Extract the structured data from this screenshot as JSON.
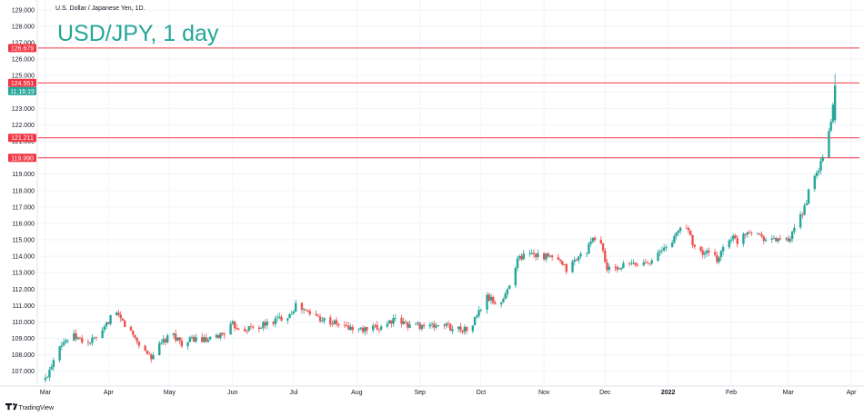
{
  "header": {
    "symbol_line": "U.S. Dollar / Japanese Yen, 1D.",
    "title": "USD/JPY, 1 day"
  },
  "footer": {
    "brand": "TradingView"
  },
  "colors": {
    "up": "#26a69a",
    "down": "#ef5350",
    "level_line": "#f23645",
    "title": "#26a69a",
    "grid": "#f0f3fa"
  },
  "chart_data": {
    "type": "candlestick",
    "title": "USD/JPY, 1 day",
    "ylim": [
      106.1,
      129.6
    ],
    "y_ticks": [
      "107.000",
      "108.000",
      "109.000",
      "110.000",
      "111.000",
      "112.000",
      "113.000",
      "114.000",
      "115.000",
      "116.000",
      "117.000",
      "118.000",
      "119.000",
      "120.000",
      "121.000",
      "122.000",
      "123.000",
      "124.000",
      "125.000",
      "126.000",
      "127.000",
      "128.000",
      "129.000"
    ],
    "x_ticks": [
      {
        "label": "Mar",
        "day": 0,
        "bold": false
      },
      {
        "label": "Apr",
        "day": 31,
        "bold": false
      },
      {
        "label": "May",
        "day": 61,
        "bold": false
      },
      {
        "label": "Jun",
        "day": 92,
        "bold": false
      },
      {
        "label": "Jul",
        "day": 122,
        "bold": false
      },
      {
        "label": "Aug",
        "day": 153,
        "bold": false
      },
      {
        "label": "Sep",
        "day": 184,
        "bold": false
      },
      {
        "label": "Oct",
        "day": 214,
        "bold": false
      },
      {
        "label": "Nov",
        "day": 245,
        "bold": false
      },
      {
        "label": "Dec",
        "day": 275,
        "bold": false
      },
      {
        "label": "2022",
        "day": 306,
        "bold": true
      },
      {
        "label": "Feb",
        "day": 337,
        "bold": false
      },
      {
        "label": "Mar",
        "day": 365,
        "bold": false
      },
      {
        "label": "Apr",
        "day": 396,
        "bold": false
      }
    ],
    "x_range": [
      -4,
      400
    ],
    "horizontal_levels": [
      {
        "label": "126.679",
        "value": 126.679
      },
      {
        "label": "124.551",
        "value": 124.551
      },
      {
        "label": "121.211",
        "value": 121.211
      },
      {
        "label": "119.990",
        "value": 119.99
      }
    ],
    "last_price": {
      "label": "124.551",
      "value": 124.551
    },
    "countdown": "11:16:19",
    "anchors": [
      [
        0,
        106.5
      ],
      [
        7,
        108.7
      ],
      [
        14,
        109.1
      ],
      [
        21,
        108.7
      ],
      [
        28,
        109.3
      ],
      [
        33,
        110.6
      ],
      [
        38,
        110.0
      ],
      [
        43,
        109.2
      ],
      [
        48,
        108.3
      ],
      [
        52,
        107.9
      ],
      [
        58,
        108.8
      ],
      [
        63,
        109.2
      ],
      [
        68,
        108.6
      ],
      [
        73,
        109.0
      ],
      [
        80,
        108.8
      ],
      [
        87,
        109.3
      ],
      [
        92,
        109.8
      ],
      [
        98,
        109.6
      ],
      [
        105,
        109.7
      ],
      [
        113,
        110.1
      ],
      [
        120,
        110.5
      ],
      [
        123,
        111.0
      ],
      [
        130,
        110.5
      ],
      [
        140,
        110.0
      ],
      [
        150,
        109.6
      ],
      [
        157,
        109.5
      ],
      [
        163,
        109.6
      ],
      [
        170,
        110.1
      ],
      [
        180,
        109.8
      ],
      [
        186,
        109.8
      ],
      [
        190,
        109.7
      ],
      [
        195,
        109.9
      ],
      [
        200,
        109.6
      ],
      [
        205,
        109.6
      ],
      [
        208,
        109.4
      ],
      [
        212,
        110.4
      ],
      [
        217,
        111.5
      ],
      [
        223,
        111.0
      ],
      [
        226,
        111.6
      ],
      [
        229,
        112.8
      ],
      [
        232,
        113.8
      ],
      [
        238,
        114.3
      ],
      [
        244,
        114.0
      ],
      [
        250,
        113.9
      ],
      [
        256,
        113.2
      ],
      [
        260,
        113.7
      ],
      [
        266,
        114.4
      ],
      [
        271,
        115.3
      ],
      [
        273,
        114.8
      ],
      [
        276,
        113.2
      ],
      [
        280,
        113.2
      ],
      [
        286,
        113.5
      ],
      [
        292,
        113.5
      ],
      [
        296,
        113.7
      ],
      [
        302,
        114.2
      ],
      [
        306,
        114.7
      ],
      [
        310,
        115.3
      ],
      [
        313,
        116.0
      ],
      [
        316,
        115.6
      ],
      [
        320,
        114.2
      ],
      [
        325,
        114.2
      ],
      [
        330,
        113.8
      ],
      [
        333,
        114.5
      ],
      [
        337,
        115.2
      ],
      [
        340,
        114.9
      ],
      [
        343,
        115.4
      ],
      [
        346,
        115.6
      ],
      [
        350,
        115.4
      ],
      [
        355,
        115.0
      ],
      [
        358,
        115.0
      ],
      [
        362,
        115.1
      ],
      [
        365,
        114.8
      ],
      [
        369,
        115.8
      ],
      [
        373,
        117.0
      ],
      [
        376,
        118.3
      ],
      [
        379,
        119.0
      ],
      [
        382,
        120.0
      ],
      [
        384,
        121.0
      ],
      [
        386,
        122.2
      ],
      [
        388,
        124.4
      ]
    ]
  }
}
